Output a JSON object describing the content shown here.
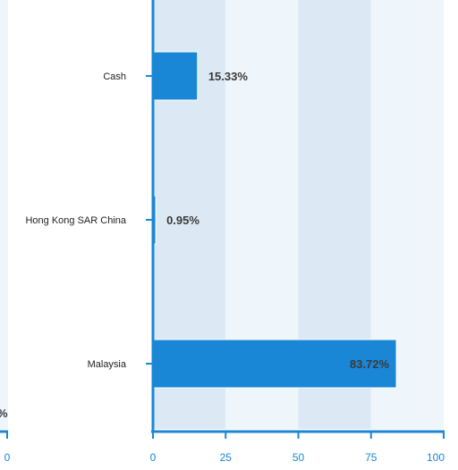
{
  "chart_data": {
    "type": "bar",
    "orientation": "horizontal",
    "categories": [
      "Cash",
      "Hong Kong SAR China",
      "Malaysia"
    ],
    "values": [
      15.33,
      0.95,
      83.72
    ],
    "data_labels": [
      "15.33%",
      "0.95%",
      "83.72%"
    ],
    "title": "",
    "xlabel": "",
    "ylabel": "",
    "xlim": [
      0,
      100
    ],
    "x_ticks": [
      "0",
      "25",
      "50",
      "75",
      "100"
    ],
    "grid": "alternating-bands",
    "legend": "none"
  },
  "left_partial": {
    "tick_label": "0",
    "label_fragment": "%"
  },
  "colors": {
    "bar": "#1a87d6",
    "axis": "#1a87d6",
    "band_dark": "#dce9f5",
    "band_light": "#eef5fb",
    "tick_text": "#1a87d6"
  }
}
